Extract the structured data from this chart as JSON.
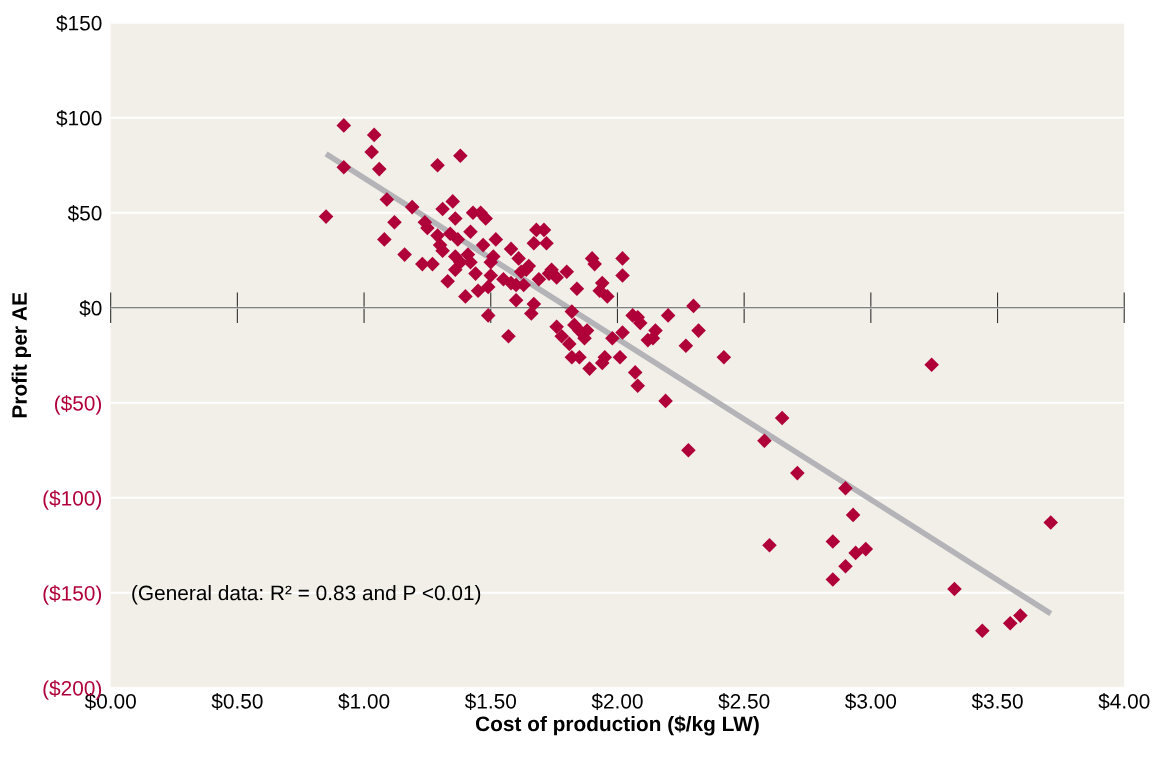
{
  "chart_data": {
    "type": "scatter",
    "xlabel": "Cost of production ($/kg LW)",
    "ylabel": "Profit per AE",
    "xlim": [
      0,
      4
    ],
    "ylim": [
      -200,
      150
    ],
    "xticks": [
      {
        "value": 0,
        "label": "$0.00"
      },
      {
        "value": 0.5,
        "label": "$0.50"
      },
      {
        "value": 1,
        "label": "$1.00"
      },
      {
        "value": 1.5,
        "label": "$1.50"
      },
      {
        "value": 2,
        "label": "$2.00"
      },
      {
        "value": 2.5,
        "label": "$2.50"
      },
      {
        "value": 3,
        "label": "$3.00"
      },
      {
        "value": 3.5,
        "label": "$3.50"
      },
      {
        "value": 4,
        "label": "$4.00"
      }
    ],
    "yticks": [
      {
        "value": -200,
        "label": "($200)"
      },
      {
        "value": -150,
        "label": "($150)"
      },
      {
        "value": -100,
        "label": "($100)"
      },
      {
        "value": -50,
        "label": "($50)"
      },
      {
        "value": 0,
        "label": "$0"
      },
      {
        "value": 50,
        "label": "$50"
      },
      {
        "value": 100,
        "label": "$100"
      },
      {
        "value": 150,
        "label": "$150"
      }
    ],
    "grid": "y",
    "legend": false,
    "marker": "diamond",
    "annotations": [
      "(General data: R² = 0.83 and P <0.01)"
    ],
    "series": [
      {
        "color": "#b0003a",
        "x": [
          0.85,
          0.92,
          0.92,
          1.04,
          1.03,
          1.06,
          1.09,
          1.08,
          1.12,
          1.16,
          1.19,
          1.23,
          1.24,
          1.25,
          1.27,
          1.29,
          1.38,
          1.29,
          1.3,
          1.31,
          1.31,
          1.33,
          1.34,
          1.35,
          1.36,
          1.36,
          1.36,
          1.37,
          1.38,
          1.4,
          1.41,
          1.42,
          1.43,
          1.42,
          1.44,
          1.45,
          1.46,
          1.47,
          1.48,
          1.49,
          1.49,
          1.5,
          1.5,
          1.51,
          1.52,
          1.55,
          1.57,
          1.58,
          1.58,
          1.6,
          1.6,
          1.61,
          1.62,
          1.63,
          1.64,
          1.65,
          1.66,
          1.67,
          1.67,
          1.68,
          1.69,
          1.71,
          1.72,
          1.73,
          1.74,
          1.76,
          1.76,
          1.78,
          1.8,
          1.81,
          1.82,
          1.82,
          1.83,
          1.84,
          1.85,
          1.85,
          1.87,
          1.88,
          1.89,
          1.9,
          1.91,
          1.93,
          1.94,
          1.94,
          1.95,
          1.96,
          1.98,
          2.01,
          2.02,
          2.02,
          2.02,
          2.06,
          2.07,
          2.08,
          2.08,
          2.09,
          2.12,
          2.14,
          2.15,
          2.19,
          2.2,
          2.27,
          2.28,
          2.3,
          2.32,
          2.42,
          2.58,
          2.6,
          2.65,
          2.71,
          2.85,
          2.85,
          2.9,
          2.9,
          2.93,
          2.94,
          2.98,
          3.24,
          3.33,
          3.44,
          3.55,
          3.59,
          3.71
        ],
        "values": [
          48,
          96,
          74,
          91,
          82,
          73,
          57,
          36,
          45,
          28,
          53,
          23,
          45,
          42,
          23,
          75,
          80,
          38,
          33,
          52,
          30,
          14,
          39,
          56,
          27,
          20,
          47,
          36,
          24,
          6,
          28,
          40,
          50,
          24,
          18,
          9,
          50,
          33,
          47,
          11,
          -4,
          24,
          17,
          27,
          36,
          15,
          -15,
          31,
          13,
          12,
          4,
          26,
          19,
          12,
          20,
          22,
          -3,
          34,
          2,
          41,
          15,
          41,
          34,
          18,
          20,
          -10,
          16,
          -15,
          19,
          -19,
          -2,
          -26,
          -9,
          10,
          -26,
          -12,
          -16,
          -12,
          -32,
          26,
          23,
          9,
          13,
          -29,
          -26,
          6,
          -16,
          -26,
          17,
          26,
          -13,
          -4,
          -34,
          -41,
          -5,
          -8,
          -17,
          -16,
          -12,
          -49,
          -4,
          -20,
          -75,
          1,
          -12,
          -26,
          -70,
          -125,
          -58,
          -87,
          -123,
          -143,
          -136,
          -95,
          -109,
          -129,
          -127,
          -30,
          -148,
          -170,
          -166,
          -162,
          -113
        ]
      },
      {
        "type": "line",
        "marker": "none",
        "color": "#b3b3b8",
        "x": [
          0.85,
          3.71
        ],
        "values": [
          81,
          -161
        ]
      }
    ]
  }
}
